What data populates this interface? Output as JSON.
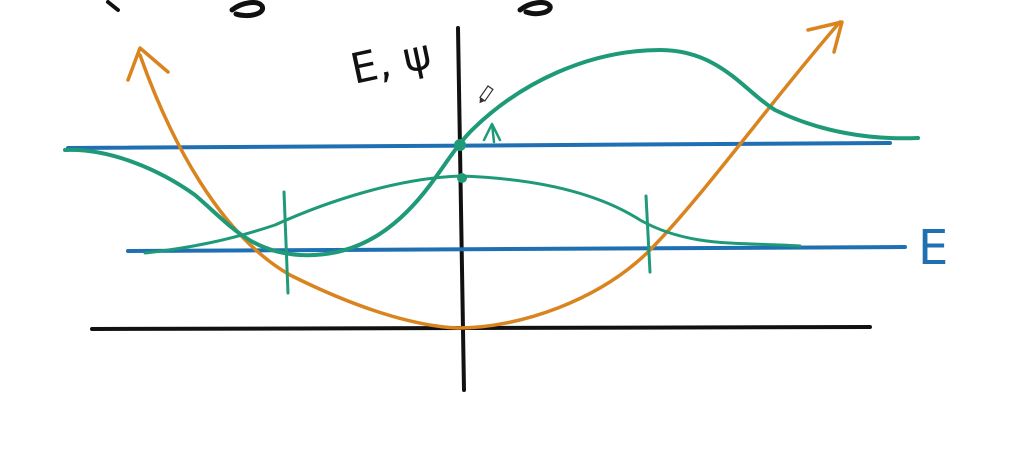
{
  "sketch": {
    "axis_label": "E, ψ",
    "energy_label": "E",
    "colors": {
      "axes": "#111111",
      "potential": "#d9841f",
      "energy_levels": "#1f6fb3",
      "wavefunctions": "#1f9a78",
      "background": "#ffffff"
    }
  }
}
